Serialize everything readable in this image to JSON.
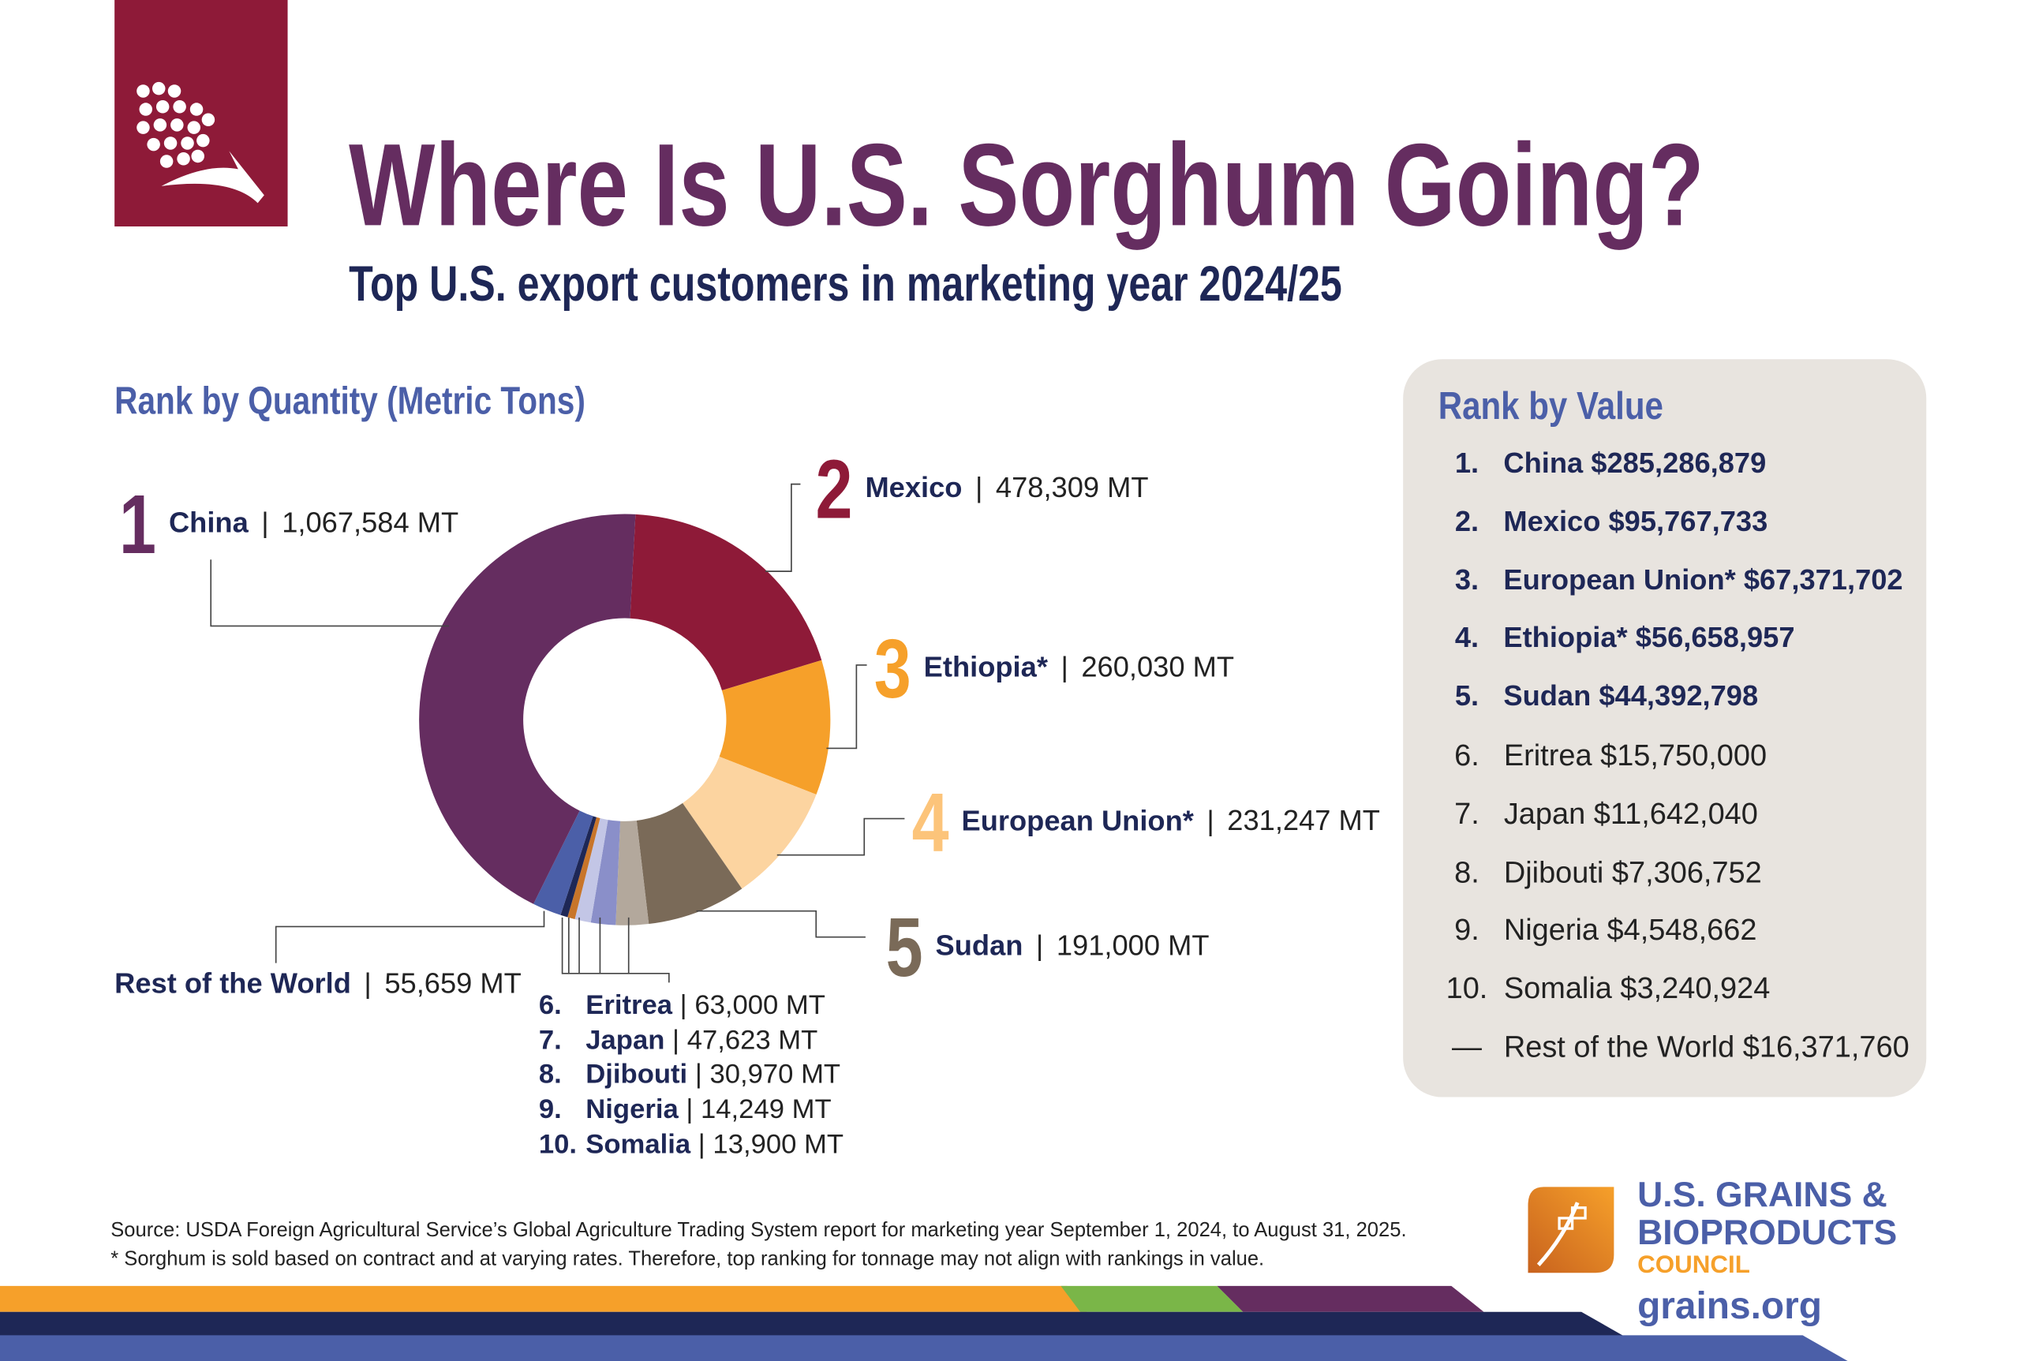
{
  "title": "Where Is U.S. Sorghum Going?",
  "subtitle": "Top U.S. export customers in marketing year 2024/25",
  "quantity_heading": "Rank by Quantity (Metric Tons)",
  "value_heading": "Rank by Value",
  "separator": "|",
  "chart_data": {
    "type": "pie",
    "variant": "donut",
    "title": "Rank by Quantity (Metric Tons)",
    "unit": "MT",
    "slices": [
      {
        "rank": "1",
        "name": "China",
        "value": 1067584,
        "label": "1,067,584 MT",
        "color": "#652d60"
      },
      {
        "rank": "2",
        "name": "Mexico",
        "value": 478309,
        "label": "478,309 MT",
        "color": "#8e1a38"
      },
      {
        "rank": "3",
        "name": "Ethiopia*",
        "value": 260030,
        "label": "260,030 MT",
        "color": "#f6a02a"
      },
      {
        "rank": "4",
        "name": "European Union*",
        "value": 231247,
        "label": "231,247 MT",
        "color": "#fcd4a0"
      },
      {
        "rank": "5",
        "name": "Sudan",
        "value": 191000,
        "label": "191,000 MT",
        "color": "#7a6a58"
      },
      {
        "rank": "6.",
        "name": "Eritrea",
        "value": 63000,
        "label": "63,000 MT",
        "color": "#b3a89c"
      },
      {
        "rank": "7.",
        "name": "Japan",
        "value": 47623,
        "label": "47,623 MT",
        "color": "#8a8fc9"
      },
      {
        "rank": "8.",
        "name": "Djibouti",
        "value": 30970,
        "label": "30,970 MT",
        "color": "#c3c6e6"
      },
      {
        "rank": "9.",
        "name": "Nigeria",
        "value": 14249,
        "label": "14,249 MT",
        "color": "#c8752a"
      },
      {
        "rank": "10.",
        "name": "Somalia",
        "value": 13900,
        "label": "13,900 MT",
        "color": "#1e2756"
      },
      {
        "rank": "",
        "name": "Rest of the World",
        "value": 55659,
        "label": "55,659 MT",
        "color": "#4b5fa8"
      }
    ]
  },
  "value_ranking": [
    {
      "rank": "1.",
      "text": "China $285,286,879",
      "bold": true
    },
    {
      "rank": "2.",
      "text": "Mexico $95,767,733",
      "bold": true
    },
    {
      "rank": "3.",
      "text": "European Union* $67,371,702",
      "bold": true
    },
    {
      "rank": "4.",
      "text": "Ethiopia* $56,658,957",
      "bold": true
    },
    {
      "rank": "5.",
      "text": "Sudan $44,392,798",
      "bold": true
    },
    {
      "rank": "6.",
      "text": "Eritrea $15,750,000",
      "bold": false
    },
    {
      "rank": "7.",
      "text": "Japan $11,642,040",
      "bold": false
    },
    {
      "rank": "8.",
      "text": "Djibouti $7,306,752",
      "bold": false
    },
    {
      "rank": "9.",
      "text": "Nigeria $4,548,662",
      "bold": false
    },
    {
      "rank": "10.",
      "text": "Somalia $3,240,924",
      "bold": false
    },
    {
      "rank": "—",
      "text": "Rest of the World $16,371,760",
      "bold": false
    }
  ],
  "source": "Source: USDA Foreign Agricultural Service’s Global Agriculture Trading System report for marketing year September 1, 2024, to August 31, 2025.",
  "footnote": "* Sorghum is sold based on contract and at varying rates. Therefore, top ranking for tonnage may not align with rankings in value.",
  "org": {
    "line1": "U.S. GRAINS &",
    "line2": "BIOPRODUCTS",
    "line3": "COUNCIL",
    "url": "grains.org"
  },
  "colors": {
    "purple": "#652d60",
    "maroon": "#8e1a38",
    "orange": "#f6a02a",
    "navy": "#1e2756",
    "blue": "#4b5fa8",
    "green": "#7ab648"
  }
}
